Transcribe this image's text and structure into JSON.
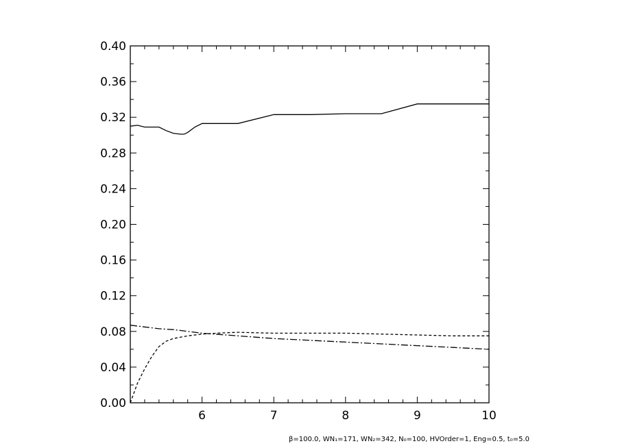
{
  "chart_data": {
    "type": "line",
    "title": "",
    "xlabel": "",
    "ylabel": "",
    "xlim": [
      5,
      10
    ],
    "ylim": [
      0.0,
      0.4
    ],
    "x_ticks": [
      6,
      7,
      8,
      9,
      10
    ],
    "x_tick_labels": [
      "6",
      "7",
      "8",
      "9",
      "10"
    ],
    "y_ticks": [
      0.0,
      0.04,
      0.08,
      0.12,
      0.16,
      0.2,
      0.24,
      0.28,
      0.32,
      0.36,
      0.4
    ],
    "y_tick_labels": [
      "0.00",
      "0.04",
      "0.08",
      "0.12",
      "0.16",
      "0.20",
      "0.24",
      "0.28",
      "0.32",
      "0.36",
      "0.40"
    ],
    "grid": false,
    "series": [
      {
        "style": "solid",
        "x": [
          5.0,
          5.1,
          5.2,
          5.4,
          5.5,
          5.6,
          5.7,
          5.75,
          5.8,
          5.9,
          6.0,
          6.1,
          6.5,
          7.0,
          7.5,
          8.0,
          8.5,
          9.0,
          9.5,
          10.0
        ],
        "y": [
          0.31,
          0.311,
          0.309,
          0.309,
          0.305,
          0.302,
          0.301,
          0.301,
          0.303,
          0.309,
          0.313,
          0.313,
          0.313,
          0.323,
          0.323,
          0.324,
          0.324,
          0.335,
          0.335,
          0.335
        ]
      },
      {
        "style": "dashed",
        "x": [
          5.0,
          5.1,
          5.2,
          5.3,
          5.4,
          5.5,
          5.6,
          5.8,
          6.0,
          6.2,
          6.5,
          7.0,
          7.5,
          8.0,
          8.5,
          9.0,
          9.5,
          10.0
        ],
        "y": [
          0.0,
          0.022,
          0.038,
          0.052,
          0.063,
          0.069,
          0.072,
          0.075,
          0.077,
          0.078,
          0.079,
          0.078,
          0.078,
          0.078,
          0.077,
          0.076,
          0.075,
          0.075
        ]
      },
      {
        "style": "dash-dot",
        "x": [
          5.0,
          5.2,
          5.4,
          5.6,
          5.8,
          6.0,
          6.5,
          7.0,
          7.5,
          8.0,
          8.5,
          9.0,
          9.5,
          10.0
        ],
        "y": [
          0.087,
          0.085,
          0.083,
          0.082,
          0.08,
          0.078,
          0.075,
          0.072,
          0.07,
          0.068,
          0.066,
          0.064,
          0.062,
          0.06
        ]
      }
    ],
    "annotation": "β=100.0, WN₁=171, WN₂=342, N₀=100, HVOrder=1, Eng=0.5, t₀=5.0"
  }
}
